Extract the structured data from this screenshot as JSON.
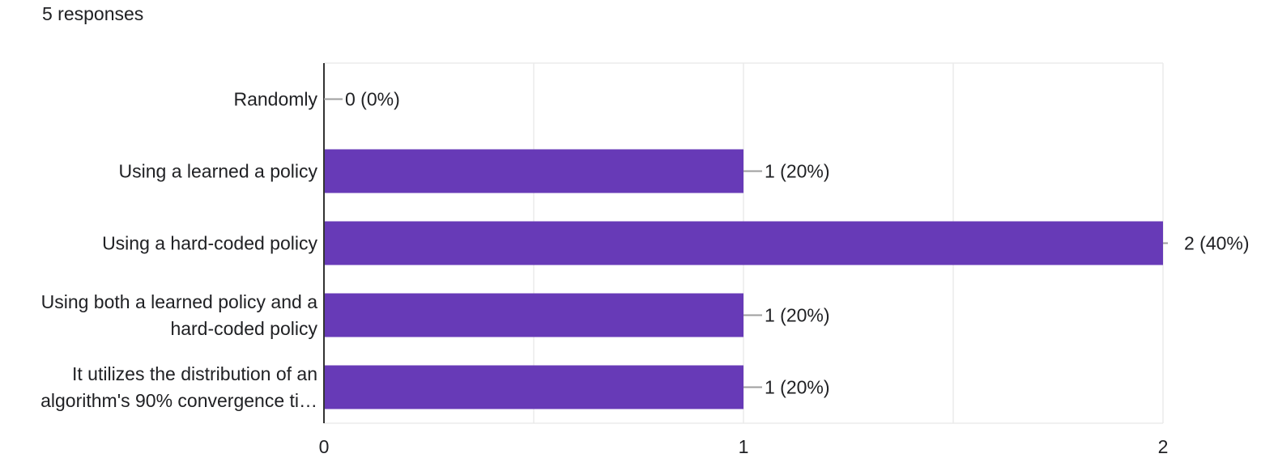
{
  "header": {
    "responses_label": "5 responses"
  },
  "colors": {
    "bar": "#673ab7",
    "gridline": "#ebebeb",
    "axis": "#333333",
    "connector": "#9e9e9e"
  },
  "chart_data": {
    "type": "bar",
    "orientation": "horizontal",
    "categories": [
      [
        "Randomly"
      ],
      [
        "Using a learned a policy"
      ],
      [
        "Using a hard-coded policy"
      ],
      [
        "Using both a learned policy and a",
        "hard-coded policy"
      ],
      [
        "It utilizes the distribution of an",
        "algorithm's 90% convergence ti…"
      ]
    ],
    "values": [
      0,
      1,
      2,
      1,
      1
    ],
    "value_labels": [
      "0 (0%)",
      "1 (20%)",
      "2 (40%)",
      "1 (20%)",
      "1 (20%)"
    ],
    "xlim": [
      0,
      2
    ],
    "x_ticks": [
      0,
      1,
      2
    ],
    "x_tick_labels": [
      "0",
      "1",
      "2"
    ],
    "grid": true
  }
}
